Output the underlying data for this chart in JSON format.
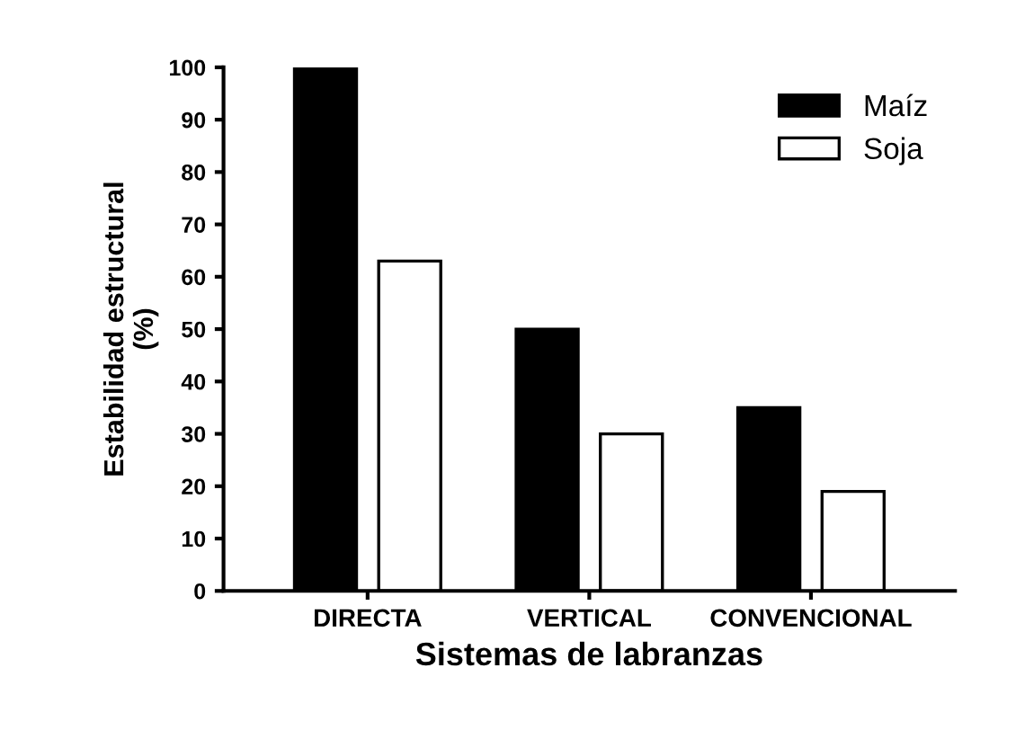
{
  "chart_data": {
    "type": "bar",
    "xlabel": "Sistemas de labranzas",
    "ylabel": "Estabilidad estructural\n(%)",
    "categories": [
      "DIRECTA",
      "VERTICAL",
      "CONVENCIONAL"
    ],
    "series": [
      {
        "name": "Maíz",
        "color": "#000000",
        "values": [
          100,
          50,
          35
        ]
      },
      {
        "name": "Soja",
        "color": "#ffffff",
        "values": [
          63,
          30,
          19
        ]
      }
    ],
    "ylim": [
      0,
      100
    ],
    "yticks": [
      0,
      10,
      20,
      30,
      40,
      50,
      60,
      70,
      80,
      90,
      100
    ],
    "grid": false,
    "legend": "top right"
  }
}
